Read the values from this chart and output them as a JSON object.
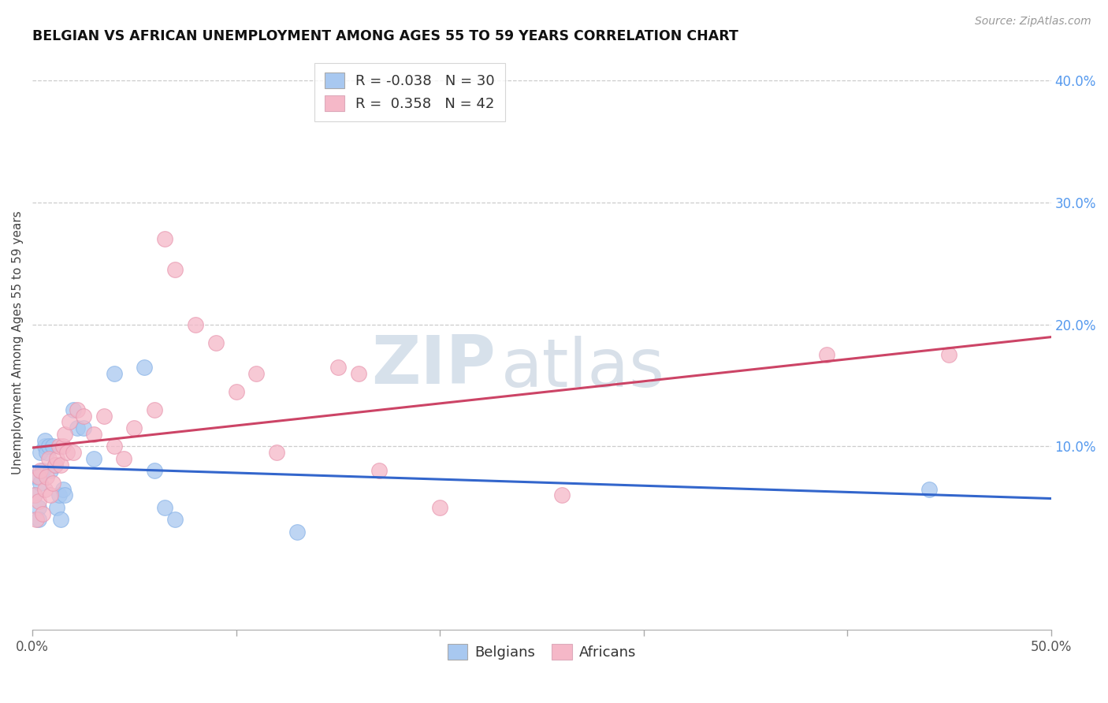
{
  "title": "BELGIAN VS AFRICAN UNEMPLOYMENT AMONG AGES 55 TO 59 YEARS CORRELATION CHART",
  "source": "Source: ZipAtlas.com",
  "ylabel": "Unemployment Among Ages 55 to 59 years",
  "xlim": [
    0.0,
    0.5
  ],
  "ylim": [
    -0.05,
    0.42
  ],
  "belgian_color": "#a8c8f0",
  "african_color": "#f5b8c8",
  "trendline_belgian_color": "#3366cc",
  "trendline_african_color": "#cc4466",
  "legend_R_belgian": "-0.038",
  "legend_N_belgian": "30",
  "legend_R_african": "0.358",
  "legend_N_african": "42",
  "belgians_x": [
    0.001,
    0.002,
    0.003,
    0.003,
    0.004,
    0.004,
    0.005,
    0.006,
    0.006,
    0.007,
    0.008,
    0.009,
    0.01,
    0.011,
    0.012,
    0.013,
    0.014,
    0.015,
    0.016,
    0.02,
    0.022,
    0.025,
    0.03,
    0.04,
    0.055,
    0.06,
    0.065,
    0.07,
    0.13,
    0.44
  ],
  "belgians_y": [
    0.06,
    0.075,
    0.05,
    0.04,
    0.095,
    0.07,
    0.08,
    0.1,
    0.105,
    0.095,
    0.1,
    0.08,
    0.1,
    0.085,
    0.05,
    0.06,
    0.04,
    0.065,
    0.06,
    0.13,
    0.115,
    0.115,
    0.09,
    0.16,
    0.165,
    0.08,
    0.05,
    0.04,
    0.03,
    0.065
  ],
  "africans_x": [
    0.001,
    0.002,
    0.003,
    0.003,
    0.004,
    0.005,
    0.006,
    0.007,
    0.008,
    0.009,
    0.01,
    0.011,
    0.012,
    0.013,
    0.014,
    0.015,
    0.016,
    0.017,
    0.018,
    0.02,
    0.022,
    0.025,
    0.03,
    0.035,
    0.04,
    0.045,
    0.05,
    0.06,
    0.065,
    0.07,
    0.08,
    0.09,
    0.1,
    0.11,
    0.12,
    0.15,
    0.16,
    0.17,
    0.2,
    0.26,
    0.39,
    0.45
  ],
  "africans_y": [
    0.06,
    0.04,
    0.075,
    0.055,
    0.08,
    0.045,
    0.065,
    0.075,
    0.09,
    0.06,
    0.07,
    0.085,
    0.09,
    0.1,
    0.085,
    0.1,
    0.11,
    0.095,
    0.12,
    0.095,
    0.13,
    0.125,
    0.11,
    0.125,
    0.1,
    0.09,
    0.115,
    0.13,
    0.27,
    0.245,
    0.2,
    0.185,
    0.145,
    0.16,
    0.095,
    0.165,
    0.16,
    0.08,
    0.05,
    0.06,
    0.175,
    0.175
  ],
  "watermark_zip": "ZIP",
  "watermark_atlas": "atlas",
  "background_color": "#ffffff",
  "grid_color": "#cccccc",
  "right_tick_color": "#5599ee"
}
